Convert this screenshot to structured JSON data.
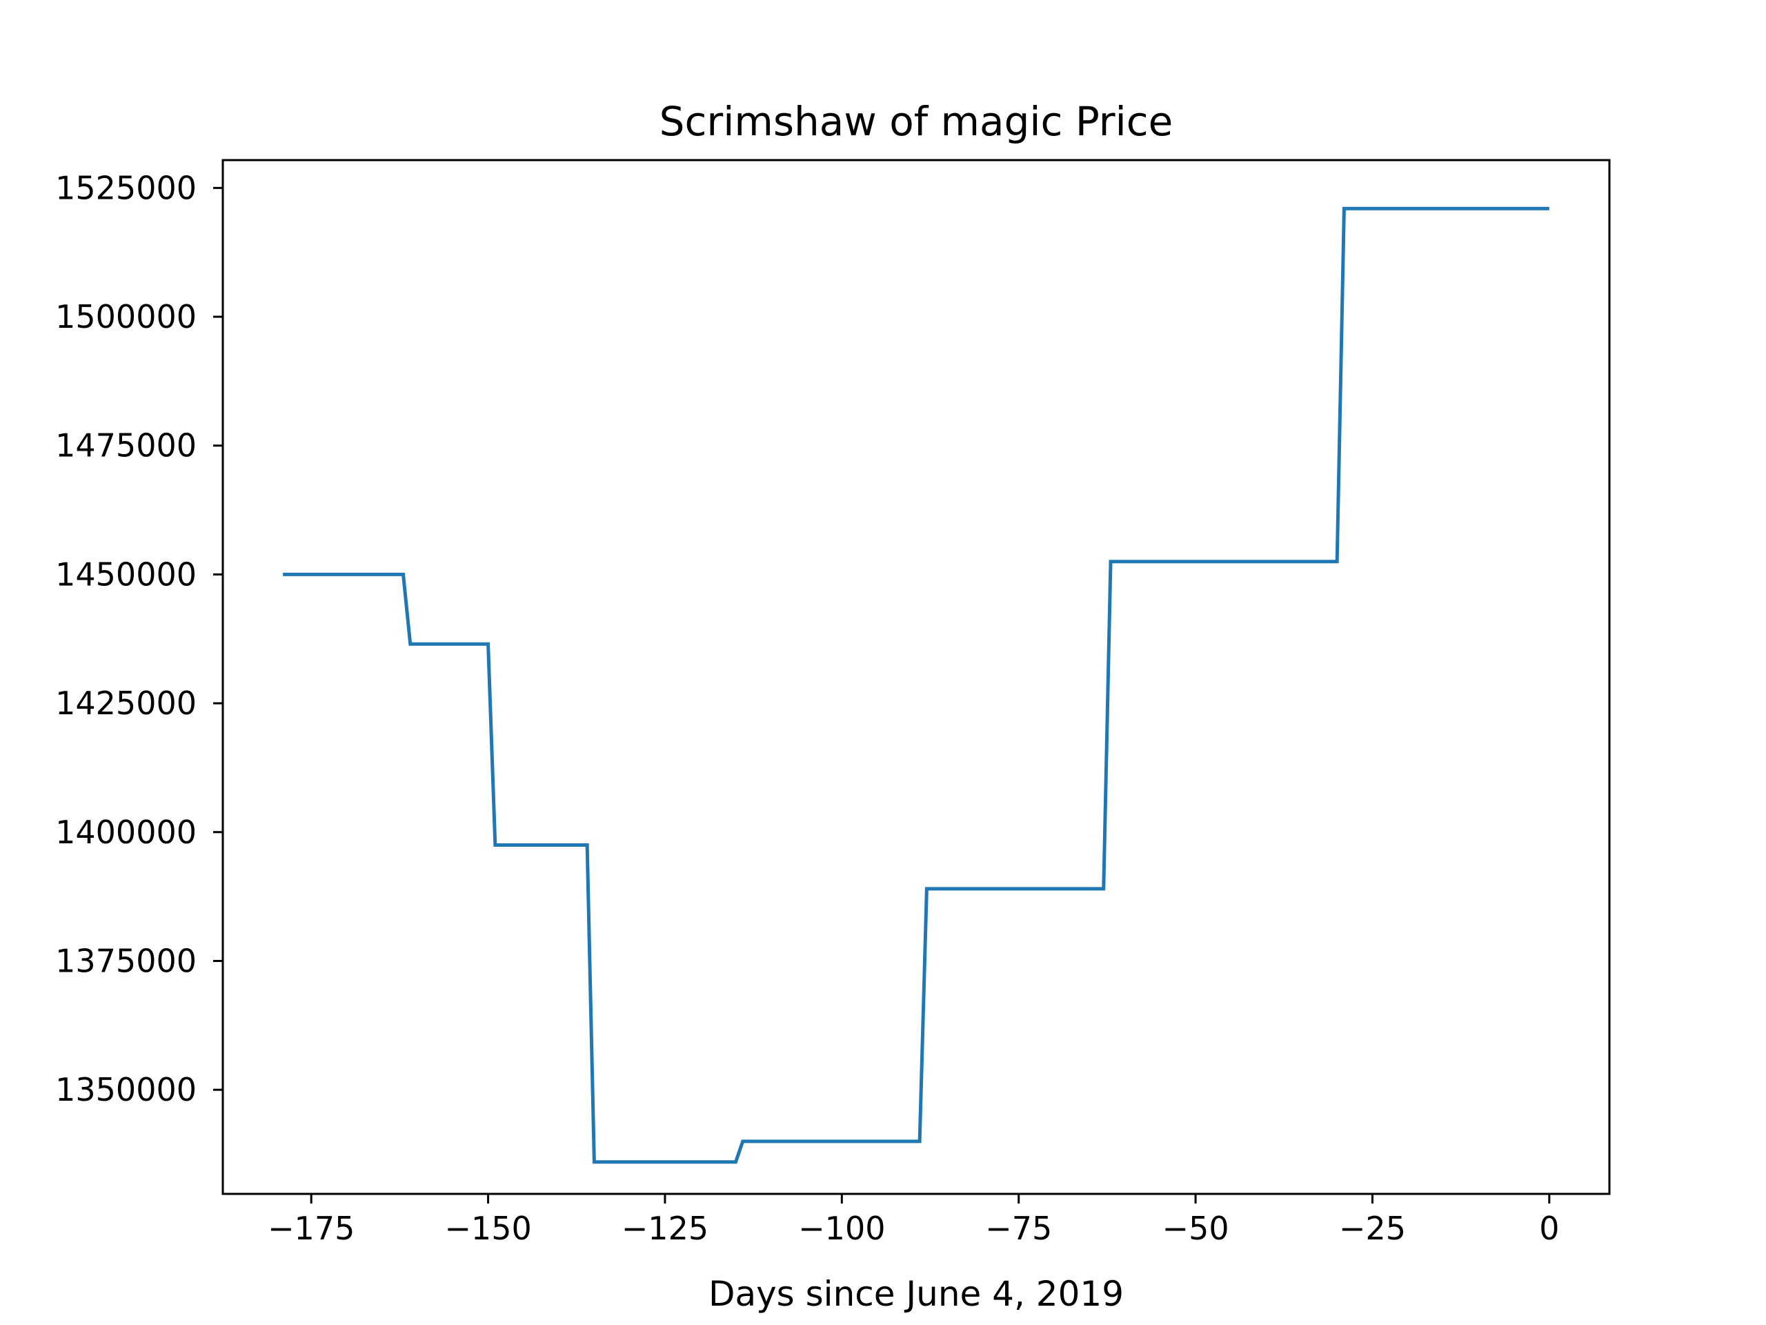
{
  "chart_data": {
    "type": "line",
    "title": "Scrimshaw of magic Price",
    "xlabel": "Days since June 4, 2019",
    "ylabel": "",
    "xlim": [
      -187.5,
      8.5
    ],
    "ylim": [
      1329800,
      1530400
    ],
    "x_ticks": [
      -175,
      -150,
      -125,
      -100,
      -75,
      -50,
      -25,
      0
    ],
    "x_tick_labels": [
      "−175",
      "−150",
      "−125",
      "−100",
      "−75",
      "−50",
      "−25",
      "0"
    ],
    "y_ticks": [
      1350000,
      1375000,
      1400000,
      1425000,
      1450000,
      1475000,
      1500000,
      1525000
    ],
    "y_tick_labels": [
      "1350000",
      "1375000",
      "1400000",
      "1425000",
      "1450000",
      "1475000",
      "1500000",
      "1525000"
    ],
    "grid": false,
    "line_color": "#1f77b4",
    "series": [
      {
        "x": [
          -179,
          -162,
          -161,
          -150,
          -149,
          -136,
          -135,
          -115,
          -114,
          -89,
          -88,
          -63,
          -62,
          -30,
          -29,
          0
        ],
        "y": [
          1450000,
          1450000,
          1436500,
          1436500,
          1397500,
          1397500,
          1336000,
          1336000,
          1340000,
          1340000,
          1389000,
          1389000,
          1452500,
          1452500,
          1521000,
          1521000
        ]
      }
    ]
  }
}
